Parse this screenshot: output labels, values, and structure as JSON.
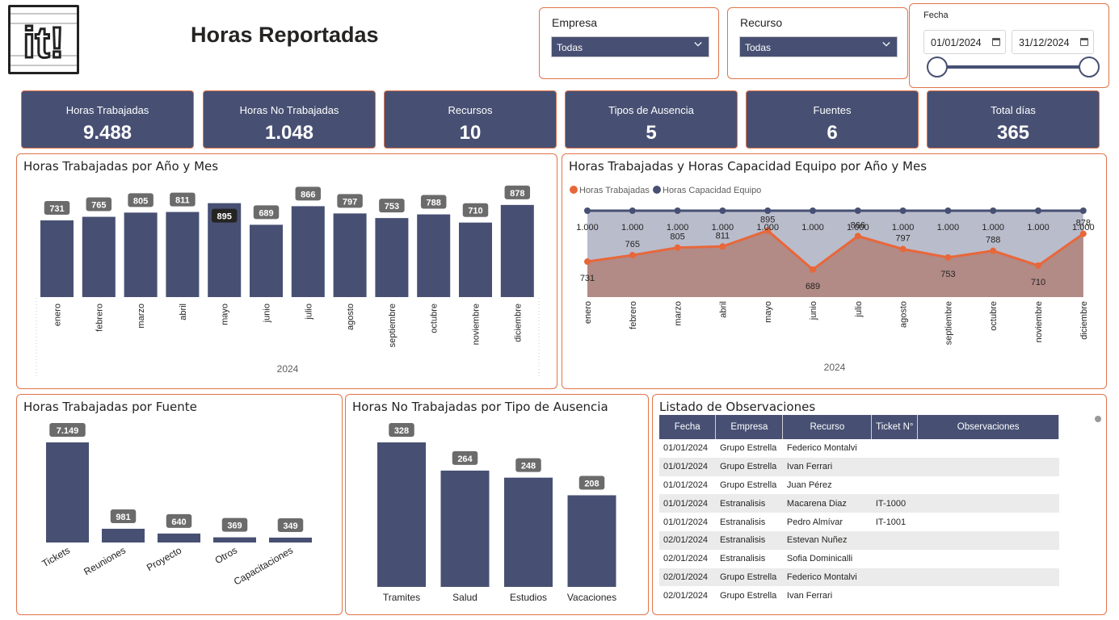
{
  "header": {
    "logo_text": "it!",
    "title": "Horas Reportadas"
  },
  "filters": {
    "empresa": {
      "label": "Empresa",
      "selected": "Todas"
    },
    "recurso": {
      "label": "Recurso",
      "selected": "Todas"
    },
    "fecha": {
      "label": "Fecha",
      "start": "01/01/2024",
      "end": "31/12/2024"
    }
  },
  "kpis": [
    {
      "label": "Horas Trabajadas",
      "value": "9.488"
    },
    {
      "label": "Horas No Trabajadas",
      "value": "1.048"
    },
    {
      "label": "Recursos",
      "value": "10"
    },
    {
      "label": "Tipos de Ausencia",
      "value": "5"
    },
    {
      "label": "Fuentes",
      "value": "6"
    },
    {
      "label": "Total días",
      "value": "365"
    }
  ],
  "colors": {
    "navy": "#475073",
    "orange": "#e8673a",
    "border": "#e0744a",
    "label_bg": "#6b6b6b"
  },
  "charts": {
    "monthly_title": "Horas Trabajadas por Año y Mes",
    "combo_title": "Horas Trabajadas y Horas Capacidad Equipo por Año y Mes",
    "source_title": "Horas Trabajadas por Fuente",
    "absence_title": "Horas No Trabajadas por Tipo de Ausencia",
    "year_label": "2024"
  },
  "chart_data": [
    {
      "type": "bar",
      "title": "Horas Trabajadas por Año y Mes",
      "categories": [
        "enero",
        "febrero",
        "marzo",
        "abril",
        "mayo",
        "junio",
        "julio",
        "agosto",
        "septiembre",
        "octubre",
        "noviembre",
        "diciembre"
      ],
      "values": [
        731,
        765,
        805,
        811,
        895,
        689,
        866,
        797,
        753,
        788,
        710,
        878
      ],
      "labels": [
        "731",
        "765",
        "805",
        "811",
        "895",
        "689",
        "866",
        "797",
        "753",
        "788",
        "710",
        "878"
      ],
      "highlighted": "mayo",
      "xlabel": "2024",
      "ylim": [
        0,
        900
      ]
    },
    {
      "type": "area",
      "title": "Horas Trabajadas y Horas Capacidad Equipo por Año y Mes",
      "categories": [
        "enero",
        "febrero",
        "marzo",
        "abril",
        "mayo",
        "junio",
        "julio",
        "agosto",
        "septiembre",
        "octubre",
        "noviembre",
        "diciembre"
      ],
      "series": [
        {
          "name": "Horas Trabajadas",
          "values": [
            731,
            765,
            805,
            811,
            895,
            689,
            866,
            797,
            753,
            788,
            710,
            878
          ],
          "labels": [
            "731",
            "765",
            "805",
            "811",
            "895",
            "689",
            "866",
            "797",
            "753",
            "788",
            "710",
            "878"
          ],
          "color": "#e8673a"
        },
        {
          "name": "Horas Capacidad Equipo",
          "values": [
            1000,
            1000,
            1000,
            1000,
            1000,
            1000,
            1000,
            1000,
            1000,
            1000,
            1000,
            1000
          ],
          "labels": [
            "1.000",
            "1.000",
            "1.000",
            "1.000",
            "1.000",
            "1.000",
            "1.000",
            "1.000",
            "1.000",
            "1.000",
            "1.000",
            "1.000"
          ],
          "color": "#475073"
        }
      ],
      "legend": "top-left",
      "xlabel": "2024",
      "ylim": [
        650,
        1000
      ]
    },
    {
      "type": "bar",
      "title": "Horas Trabajadas por Fuente",
      "categories": [
        "Tickets",
        "Reuniones",
        "Proyecto",
        "Otros",
        "Capacitaciones"
      ],
      "values": [
        7149,
        981,
        640,
        369,
        349
      ],
      "labels": [
        "7.149",
        "981",
        "640",
        "369",
        "349"
      ],
      "ylim": [
        0,
        7149
      ]
    },
    {
      "type": "bar",
      "title": "Horas No Trabajadas por Tipo de Ausencia",
      "categories": [
        "Tramites",
        "Salud",
        "Estudios",
        "Vacaciones"
      ],
      "values": [
        328,
        264,
        248,
        208
      ],
      "labels": [
        "328",
        "264",
        "248",
        "208"
      ],
      "ylim": [
        0,
        328
      ]
    }
  ],
  "observations": {
    "title": "Listado de Observaciones",
    "columns": [
      "Fecha",
      "Empresa",
      "Recurso",
      "Ticket N°",
      "Observaciones"
    ],
    "rows": [
      [
        "01/01/2024",
        "Grupo Estrella",
        "Federico Montalvi",
        "",
        ""
      ],
      [
        "01/01/2024",
        "Grupo Estrella",
        "Ivan Ferrari",
        "",
        ""
      ],
      [
        "01/01/2024",
        "Grupo Estrella",
        "Juan Pérez",
        "",
        ""
      ],
      [
        "01/01/2024",
        "Estranalisis",
        "Macarena Diaz",
        "IT-1000",
        ""
      ],
      [
        "01/01/2024",
        "Estranalisis",
        "Pedro Almívar",
        "IT-1001",
        ""
      ],
      [
        "02/01/2024",
        "Estranalisis",
        "Estevan Nuñez",
        "",
        ""
      ],
      [
        "02/01/2024",
        "Estranalisis",
        "Sofia Dominicalli",
        "",
        ""
      ],
      [
        "02/01/2024",
        "Grupo Estrella",
        "Federico Montalvi",
        "",
        ""
      ],
      [
        "02/01/2024",
        "Grupo Estrella",
        "Ivan Ferrari",
        "",
        ""
      ]
    ]
  }
}
